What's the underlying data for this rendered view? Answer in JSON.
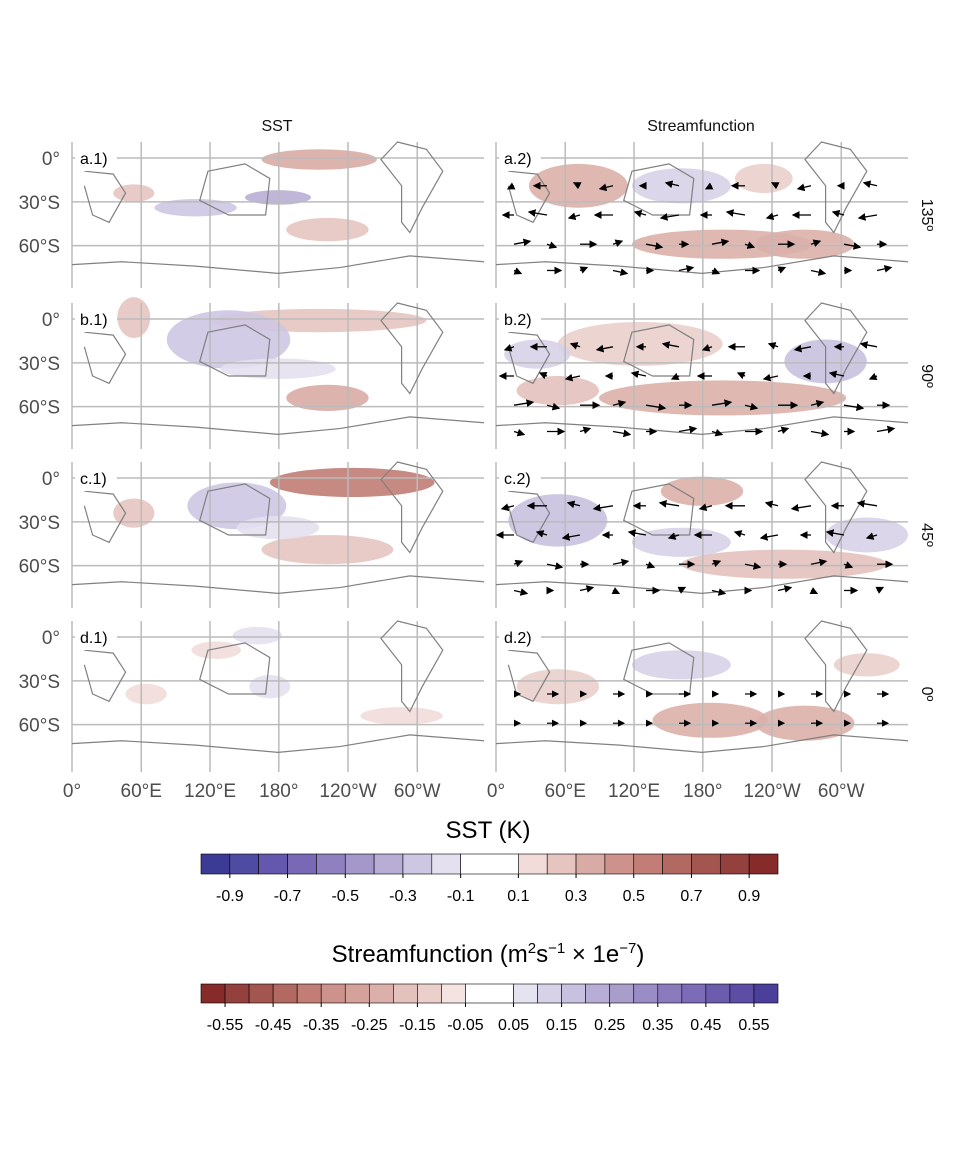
{
  "figure": {
    "column_titles": [
      "SST",
      "Streamfunction"
    ],
    "panel_labels": [
      [
        "a.1)",
        "a.2)"
      ],
      [
        "b.1)",
        "b.2)"
      ],
      [
        "c.1)",
        "c.2)"
      ],
      [
        "d.1)",
        "d.2)"
      ]
    ],
    "row_labels": [
      "135º",
      "90º",
      "45º",
      "0º"
    ],
    "lat_ticks": [
      "0°",
      "30°S",
      "60°S"
    ],
    "lon_ticks": [
      "0°",
      "60°E",
      "120°E",
      "180°",
      "120°W",
      "60°W"
    ]
  },
  "chart_data": [
    {
      "type": "heatmap",
      "title": "SST (K)",
      "colorbar_levels": [
        -1.0,
        -0.9,
        -0.8,
        -0.7,
        -0.6,
        -0.5,
        -0.4,
        -0.3,
        -0.2,
        -0.1,
        0.1,
        0.2,
        0.3,
        0.4,
        0.5,
        0.6,
        0.7,
        0.8,
        0.9,
        1.0
      ],
      "colorbar_tick_labels": [
        "-0.9",
        "-0.7",
        "-0.5",
        "-0.3",
        "-0.1",
        "0.1",
        "0.3",
        "0.5",
        "0.7",
        "0.9"
      ],
      "colors": [
        "#3b3b95",
        "#4e4ba2",
        "#6358ad",
        "#7968b5",
        "#8f80bf",
        "#a497c9",
        "#b8aed5",
        "#cec7e3",
        "#e4e0f0",
        "#ffffff",
        "#f1dcda",
        "#e6c4c0",
        "#d9aba5",
        "#cc928b",
        "#c17d76",
        "#b16962",
        "#a3554f",
        "#94403c",
        "#862a2a"
      ]
    },
    {
      "type": "heatmap",
      "title": "Streamfunction (m2s-1 × 1e-7)",
      "colorbar_levels": [
        -0.6,
        -0.55,
        -0.5,
        -0.45,
        -0.4,
        -0.35,
        -0.3,
        -0.25,
        -0.2,
        -0.15,
        -0.1,
        -0.05,
        0.05,
        0.1,
        0.15,
        0.2,
        0.25,
        0.3,
        0.35,
        0.4,
        0.45,
        0.5,
        0.55,
        0.6
      ],
      "colorbar_tick_labels": [
        "-0.55",
        "-0.45",
        "-0.35",
        "-0.25",
        "-0.15",
        "-0.05",
        "0.05",
        "0.15",
        "0.25",
        "0.35",
        "0.45",
        "0.55"
      ],
      "colors": [
        "#862a2a",
        "#94403c",
        "#a3554f",
        "#b16962",
        "#c17d76",
        "#cc928b",
        "#d4a19b",
        "#dbb0aa",
        "#e3c1bc",
        "#eacfcb",
        "#f3e3e1",
        "#ffffff",
        "#e6e3f1",
        "#d7d2e8",
        "#c8c1df",
        "#b8aed5",
        "#a99dcc",
        "#9a8cc4",
        "#8b7bbd",
        "#7c6bb6",
        "#6c5cad",
        "#5d4da5",
        "#4b3f9c"
      ]
    }
  ]
}
